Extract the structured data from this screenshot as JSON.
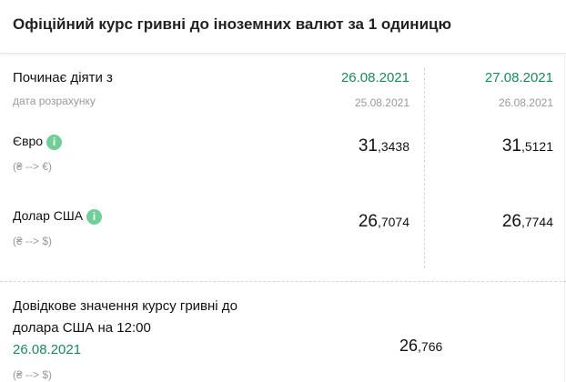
{
  "title": "Офіційний курс гривні до іноземних валют за 1 одиницю",
  "header_row": {
    "label": "Починає діяти з",
    "sub_label": "дата розрахунку",
    "dates": [
      "26.08.2021",
      "27.08.2021"
    ],
    "calc_dates": [
      "25.08.2021",
      "26.08.2021"
    ]
  },
  "currencies": [
    {
      "name": "Євро",
      "pair": "(₴ --> €)",
      "values": [
        {
          "int": "31",
          "dec": ",3438"
        },
        {
          "int": "31",
          "dec": ",5121"
        }
      ]
    },
    {
      "name": "Долар США",
      "pair": "(₴ --> $)",
      "values": [
        {
          "int": "26",
          "dec": ",7074"
        },
        {
          "int": "26",
          "dec": ",7744"
        }
      ]
    }
  ],
  "reference": {
    "line1": "Довідкове значення курсу гривні до",
    "line2": "долара США на 12:00",
    "date": "26.08.2021",
    "pair": "(₴ --> $)",
    "int": "26",
    "dec": ",766"
  },
  "info_icon": "i",
  "colors": {
    "accent": "#1b8a5a",
    "info": "#6fcf97"
  }
}
